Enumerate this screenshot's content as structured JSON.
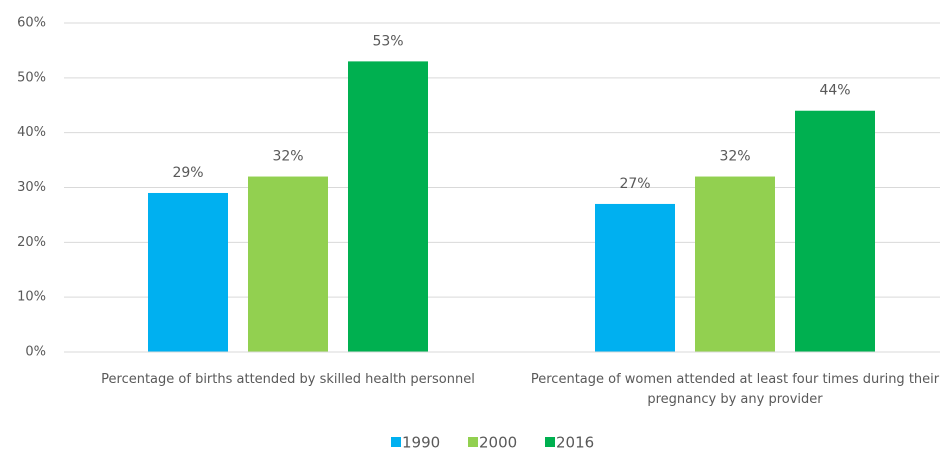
{
  "chart_data": {
    "type": "bar",
    "categories": [
      "Percentage of births attended by skilled health personnel",
      "Percentage of women attended at least four times during their pregnancy by any provider"
    ],
    "series": [
      {
        "name": "1990",
        "color": "#00b0f0",
        "values": [
          29,
          27
        ],
        "value_labels": [
          "29%",
          "27%"
        ]
      },
      {
        "name": "2000",
        "color": "#92d050",
        "values": [
          32,
          32
        ],
        "value_labels": [
          "32%",
          "32%"
        ]
      },
      {
        "name": "2016",
        "color": "#00b050",
        "values": [
          53,
          44
        ],
        "value_labels": [
          "53%",
          "44%"
        ]
      }
    ],
    "ylim": [
      0,
      60
    ],
    "yticks": [
      {
        "value": 0,
        "label": "0%"
      },
      {
        "value": 10,
        "label": "10%"
      },
      {
        "value": 20,
        "label": "20%"
      },
      {
        "value": 30,
        "label": "30%"
      },
      {
        "value": 40,
        "label": "40%"
      },
      {
        "value": 50,
        "label": "50%"
      },
      {
        "value": 60,
        "label": "60%"
      }
    ],
    "grid": true,
    "legend": "bottom"
  }
}
